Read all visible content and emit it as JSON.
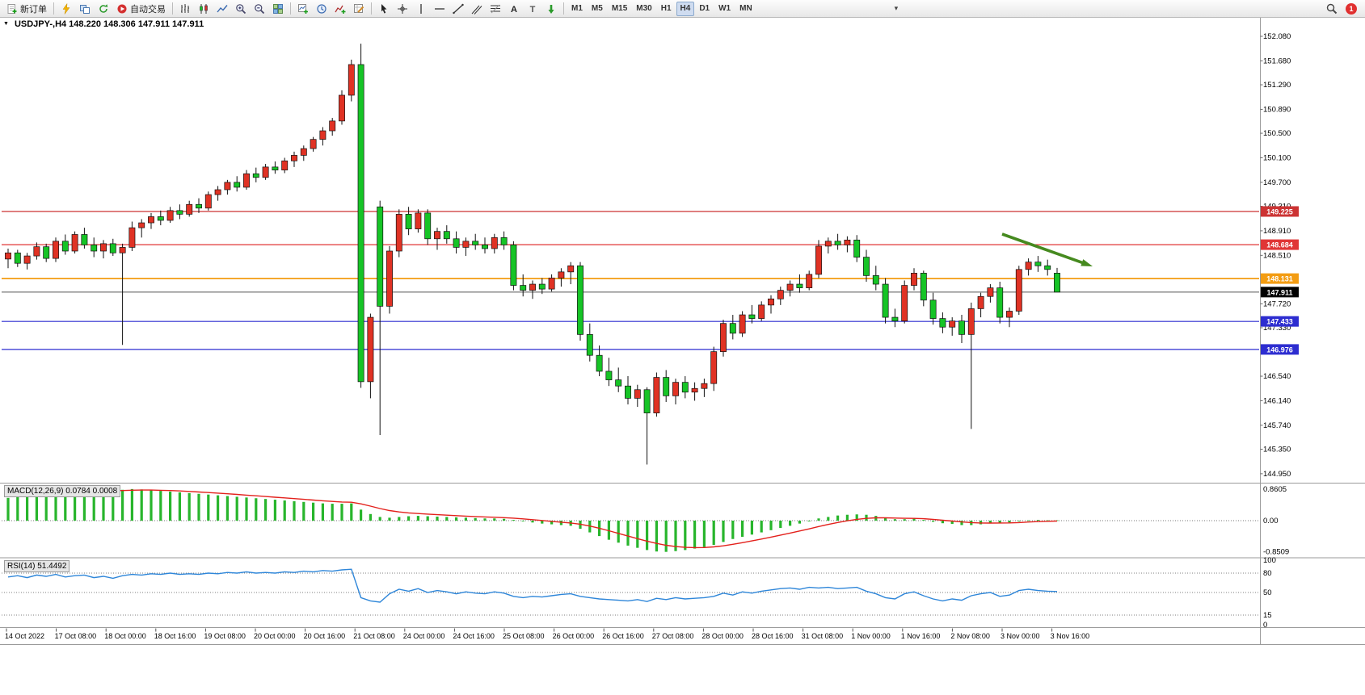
{
  "toolbar": {
    "new_order": "新订单",
    "auto_trading": "自动交易",
    "timeframes": [
      "M1",
      "M5",
      "M15",
      "M30",
      "H1",
      "H4",
      "D1",
      "W1",
      "MN"
    ],
    "active_timeframe": "H4",
    "notification_count": "1",
    "icon_names": [
      "new-order",
      "scripts",
      "chart-windows",
      "sync",
      "auto-trading",
      "bar-chart",
      "candlestick-chart",
      "line-chart",
      "zoom-in",
      "zoom-out",
      "tile-windows",
      "new-chart",
      "period",
      "indicators",
      "templates",
      "cursor",
      "crosshair",
      "vertical-line",
      "horizontal-line",
      "trendline",
      "channel",
      "fibonacci",
      "text",
      "label",
      "arrows",
      "overflow-chevron",
      "search",
      "notification"
    ]
  },
  "chart_info": {
    "title": "USDJPY-,H4 148.220 148.306 147.911 147.911"
  },
  "price_axis": {
    "labels": [
      "152.080",
      "151.680",
      "151.290",
      "150.890",
      "150.500",
      "150.100",
      "149.700",
      "149.310",
      "148.910",
      "148.510",
      "147.720",
      "147.330",
      "146.540",
      "146.140",
      "145.740",
      "145.350",
      "144.950"
    ]
  },
  "levels": {
    "badges": [
      {
        "value": 149.225,
        "text": "149.225",
        "badge_color": "#cc3333",
        "line_color": "#cc3333",
        "line_width": 1.2
      },
      {
        "value": 148.684,
        "text": "148.684",
        "badge_color": "#e03535",
        "line_color": "#e03535",
        "line_width": 1.2
      },
      {
        "value": 148.131,
        "text": "148.131",
        "badge_color": "#f39c12",
        "line_color": "#f39c12",
        "line_width": 1.8
      },
      {
        "value": 147.911,
        "text": "147.911",
        "badge_color": "#000000",
        "line_color": "#555555",
        "line_width": 1
      },
      {
        "value": 147.433,
        "text": "147.433",
        "badge_color": "#2d2dd0",
        "line_color": "#2d2dd0",
        "line_width": 1.2
      },
      {
        "value": 146.976,
        "text": "146.976",
        "badge_color": "#2d2dd0",
        "line_color": "#2d2dd0",
        "line_width": 1.2
      }
    ]
  },
  "macd_panel": {
    "label": "MACD(12,26,9) 0.0784 0.0008",
    "axis_labels": [
      "0.8605",
      "0.00",
      "-0.8509"
    ]
  },
  "rsi_panel": {
    "label": "RSI(14) 51.4492",
    "axis_labels": [
      "100",
      "80",
      "50",
      "15",
      "0"
    ],
    "levels": [
      80,
      50,
      15
    ]
  },
  "time_axis": [
    "14 Oct 2022",
    "17 Oct 08:00",
    "18 Oct 00:00",
    "18 Oct 16:00",
    "19 Oct 08:00",
    "20 Oct 00:00",
    "20 Oct 16:00",
    "21 Oct 08:00",
    "24 Oct 00:00",
    "24 Oct 16:00",
    "25 Oct 08:00",
    "26 Oct 00:00",
    "26 Oct 16:00",
    "27 Oct 08:00",
    "28 Oct 00:00",
    "28 Oct 16:00",
    "31 Oct 08:00",
    "1 Nov 00:00",
    "1 Nov 16:00",
    "2 Nov 08:00",
    "3 Nov 00:00",
    "3 Nov 16:00"
  ],
  "chart_data": {
    "type": "candlestick",
    "symbol": "USDJPY-",
    "timeframe": "H4",
    "price_range": [
      144.95,
      152.08
    ],
    "colors": {
      "bull": "#e03224",
      "bear": "#16c426",
      "wick": "#111111",
      "macd_hist": "#28b52c",
      "macd_signal": "#e3211c",
      "rsi_line": "#2e86d9",
      "arrow": "#468a1f"
    },
    "candles": [
      [
        148.45,
        148.62,
        148.3,
        148.55
      ],
      [
        148.55,
        148.6,
        148.32,
        148.38
      ],
      [
        148.38,
        148.55,
        148.28,
        148.5
      ],
      [
        148.5,
        148.72,
        148.44,
        148.65
      ],
      [
        148.65,
        148.7,
        148.4,
        148.46
      ],
      [
        148.46,
        148.8,
        148.4,
        148.74
      ],
      [
        148.74,
        148.85,
        148.52,
        148.58
      ],
      [
        148.58,
        148.9,
        148.54,
        148.85
      ],
      [
        148.85,
        148.96,
        148.62,
        148.68
      ],
      [
        148.68,
        148.8,
        148.48,
        148.58
      ],
      [
        148.58,
        148.76,
        148.46,
        148.7
      ],
      [
        148.7,
        148.78,
        148.5,
        148.55
      ],
      [
        148.55,
        148.7,
        147.05,
        148.64
      ],
      [
        148.64,
        149.06,
        148.58,
        148.96
      ],
      [
        148.96,
        149.1,
        148.8,
        149.04
      ],
      [
        149.04,
        149.2,
        148.94,
        149.14
      ],
      [
        149.14,
        149.24,
        149.0,
        149.08
      ],
      [
        149.08,
        149.3,
        149.04,
        149.24
      ],
      [
        149.24,
        149.34,
        149.1,
        149.18
      ],
      [
        149.18,
        149.4,
        149.14,
        149.34
      ],
      [
        149.34,
        149.44,
        149.2,
        149.28
      ],
      [
        149.28,
        149.55,
        149.24,
        149.5
      ],
      [
        149.5,
        149.64,
        149.4,
        149.58
      ],
      [
        149.58,
        149.74,
        149.5,
        149.7
      ],
      [
        149.7,
        149.8,
        149.55,
        149.62
      ],
      [
        149.62,
        149.9,
        149.58,
        149.84
      ],
      [
        149.84,
        149.94,
        149.7,
        149.78
      ],
      [
        149.78,
        150.0,
        149.74,
        149.95
      ],
      [
        149.95,
        150.04,
        149.84,
        149.9
      ],
      [
        149.9,
        150.1,
        149.85,
        150.05
      ],
      [
        150.05,
        150.2,
        149.95,
        150.14
      ],
      [
        150.14,
        150.3,
        150.05,
        150.25
      ],
      [
        150.25,
        150.44,
        150.2,
        150.4
      ],
      [
        150.4,
        150.6,
        150.3,
        150.54
      ],
      [
        150.54,
        150.75,
        150.46,
        150.7
      ],
      [
        150.7,
        151.2,
        150.64,
        151.12
      ],
      [
        151.12,
        151.7,
        151.02,
        151.62
      ],
      [
        151.62,
        151.96,
        146.35,
        146.45
      ],
      [
        146.45,
        147.56,
        146.18,
        147.5
      ],
      [
        149.3,
        149.4,
        145.58,
        147.68
      ],
      [
        147.68,
        148.66,
        147.56,
        148.58
      ],
      [
        148.58,
        149.26,
        148.48,
        149.18
      ],
      [
        149.18,
        149.3,
        148.84,
        148.94
      ],
      [
        148.94,
        149.26,
        148.88,
        149.2
      ],
      [
        149.2,
        149.26,
        148.68,
        148.78
      ],
      [
        148.78,
        148.96,
        148.6,
        148.9
      ],
      [
        148.9,
        149.0,
        148.7,
        148.78
      ],
      [
        148.78,
        148.9,
        148.54,
        148.64
      ],
      [
        148.64,
        148.8,
        148.5,
        148.74
      ],
      [
        148.74,
        148.86,
        148.6,
        148.68
      ],
      [
        148.68,
        148.8,
        148.54,
        148.62
      ],
      [
        148.62,
        148.86,
        148.54,
        148.8
      ],
      [
        148.8,
        148.9,
        148.6,
        148.68
      ],
      [
        148.68,
        148.74,
        147.94,
        148.02
      ],
      [
        148.02,
        148.2,
        147.84,
        147.94
      ],
      [
        147.94,
        148.1,
        147.8,
        148.04
      ],
      [
        148.04,
        148.14,
        147.88,
        147.96
      ],
      [
        147.96,
        148.2,
        147.92,
        148.14
      ],
      [
        148.14,
        148.3,
        148.0,
        148.24
      ],
      [
        148.24,
        148.4,
        148.04,
        148.34
      ],
      [
        148.34,
        148.4,
        147.12,
        147.22
      ],
      [
        147.22,
        147.4,
        146.78,
        146.88
      ],
      [
        146.88,
        147.04,
        146.54,
        146.62
      ],
      [
        146.62,
        146.84,
        146.38,
        146.48
      ],
      [
        146.48,
        146.68,
        146.28,
        146.38
      ],
      [
        146.38,
        146.54,
        146.08,
        146.18
      ],
      [
        146.18,
        146.4,
        146.04,
        146.32
      ],
      [
        146.32,
        146.36,
        145.1,
        145.94
      ],
      [
        145.94,
        146.6,
        145.88,
        146.52
      ],
      [
        146.52,
        146.64,
        146.12,
        146.22
      ],
      [
        146.22,
        146.5,
        146.08,
        146.44
      ],
      [
        146.44,
        146.54,
        146.18,
        146.28
      ],
      [
        146.28,
        146.44,
        146.14,
        146.34
      ],
      [
        146.34,
        146.5,
        146.2,
        146.42
      ],
      [
        146.42,
        147.02,
        146.3,
        146.94
      ],
      [
        146.94,
        147.46,
        146.86,
        147.4
      ],
      [
        147.4,
        147.54,
        147.14,
        147.24
      ],
      [
        147.24,
        147.6,
        147.18,
        147.54
      ],
      [
        147.54,
        147.7,
        147.4,
        147.48
      ],
      [
        147.48,
        147.76,
        147.44,
        147.7
      ],
      [
        147.7,
        147.86,
        147.56,
        147.8
      ],
      [
        147.8,
        148.0,
        147.7,
        147.94
      ],
      [
        147.94,
        148.1,
        147.84,
        148.04
      ],
      [
        148.04,
        148.2,
        147.9,
        147.98
      ],
      [
        147.98,
        148.26,
        147.94,
        148.2
      ],
      [
        148.2,
        148.76,
        148.14,
        148.66
      ],
      [
        148.66,
        148.8,
        148.54,
        148.74
      ],
      [
        148.74,
        148.86,
        148.6,
        148.68
      ],
      [
        148.68,
        148.82,
        148.56,
        148.76
      ],
      [
        148.76,
        148.84,
        148.4,
        148.48
      ],
      [
        148.48,
        148.6,
        148.08,
        148.18
      ],
      [
        148.18,
        148.34,
        147.94,
        148.04
      ],
      [
        148.04,
        148.14,
        147.4,
        147.5
      ],
      [
        147.5,
        147.64,
        147.34,
        147.44
      ],
      [
        147.44,
        148.1,
        147.4,
        148.02
      ],
      [
        148.02,
        148.3,
        147.94,
        148.22
      ],
      [
        148.22,
        148.26,
        147.68,
        147.78
      ],
      [
        147.78,
        147.9,
        147.38,
        147.48
      ],
      [
        147.48,
        147.58,
        147.24,
        147.34
      ],
      [
        147.34,
        147.5,
        147.2,
        147.44
      ],
      [
        147.44,
        147.54,
        147.08,
        147.22
      ],
      [
        147.22,
        147.74,
        145.68,
        147.64
      ],
      [
        147.64,
        147.9,
        147.5,
        147.84
      ],
      [
        147.84,
        148.04,
        147.74,
        147.98
      ],
      [
        147.98,
        148.08,
        147.4,
        147.5
      ],
      [
        147.5,
        147.66,
        147.34,
        147.6
      ],
      [
        147.6,
        148.34,
        147.54,
        148.28
      ],
      [
        148.28,
        148.46,
        148.18,
        148.4
      ],
      [
        148.4,
        148.5,
        148.24,
        148.34
      ],
      [
        148.34,
        148.44,
        148.18,
        148.28
      ],
      [
        148.22,
        148.306,
        147.911,
        147.911
      ]
    ],
    "macd_hist": [
      0.62,
      0.66,
      0.7,
      0.72,
      0.74,
      0.76,
      0.78,
      0.8,
      0.82,
      0.84,
      0.86,
      0.85,
      0.84,
      0.86,
      0.85,
      0.83,
      0.81,
      0.79,
      0.77,
      0.75,
      0.73,
      0.71,
      0.69,
      0.67,
      0.65,
      0.63,
      0.61,
      0.59,
      0.57,
      0.55,
      0.53,
      0.51,
      0.49,
      0.47,
      0.46,
      0.46,
      0.47,
      0.3,
      0.18,
      0.1,
      0.08,
      0.1,
      0.12,
      0.13,
      0.12,
      0.11,
      0.1,
      0.09,
      0.08,
      0.07,
      0.06,
      0.06,
      0.05,
      0.02,
      -0.02,
      -0.05,
      -0.08,
      -0.1,
      -0.12,
      -0.14,
      -0.22,
      -0.32,
      -0.42,
      -0.52,
      -0.6,
      -0.68,
      -0.74,
      -0.8,
      -0.84,
      -0.85,
      -0.83,
      -0.8,
      -0.76,
      -0.72,
      -0.66,
      -0.58,
      -0.5,
      -0.44,
      -0.38,
      -0.32,
      -0.26,
      -0.2,
      -0.14,
      -0.08,
      -0.02,
      0.06,
      0.1,
      0.14,
      0.16,
      0.17,
      0.16,
      0.13,
      0.08,
      0.04,
      0.04,
      0.06,
      0.02,
      -0.03,
      -0.07,
      -0.09,
      -0.12,
      -0.12,
      -0.1,
      -0.07,
      -0.06,
      -0.05,
      -0.02,
      0.01,
      0.02,
      0.01,
      0.01
    ],
    "rsi": [
      74,
      76,
      73,
      77,
      75,
      78,
      74,
      76,
      77,
      73,
      75,
      72,
      76,
      78,
      77,
      79,
      78,
      80,
      78,
      79,
      78,
      80,
      79,
      81,
      80,
      82,
      80,
      81,
      80,
      82,
      81,
      83,
      82,
      84,
      83,
      85,
      86,
      42,
      37,
      35,
      48,
      55,
      52,
      56,
      50,
      53,
      51,
      48,
      51,
      49,
      48,
      51,
      49,
      44,
      42,
      44,
      43,
      45,
      47,
      48,
      44,
      42,
      40,
      39,
      38,
      37,
      39,
      36,
      41,
      39,
      42,
      40,
      41,
      42,
      44,
      49,
      46,
      51,
      49,
      52,
      54,
      56,
      57,
      55,
      58,
      57,
      58,
      56,
      57,
      58,
      52,
      48,
      42,
      40,
      48,
      51,
      45,
      40,
      37,
      40,
      38,
      45,
      48,
      50,
      44,
      46,
      53,
      55,
      53,
      52,
      51.45
    ],
    "annotation_arrow": {
      "from_price": 148.85,
      "to_price": 148.4,
      "direction": "down-right"
    }
  }
}
